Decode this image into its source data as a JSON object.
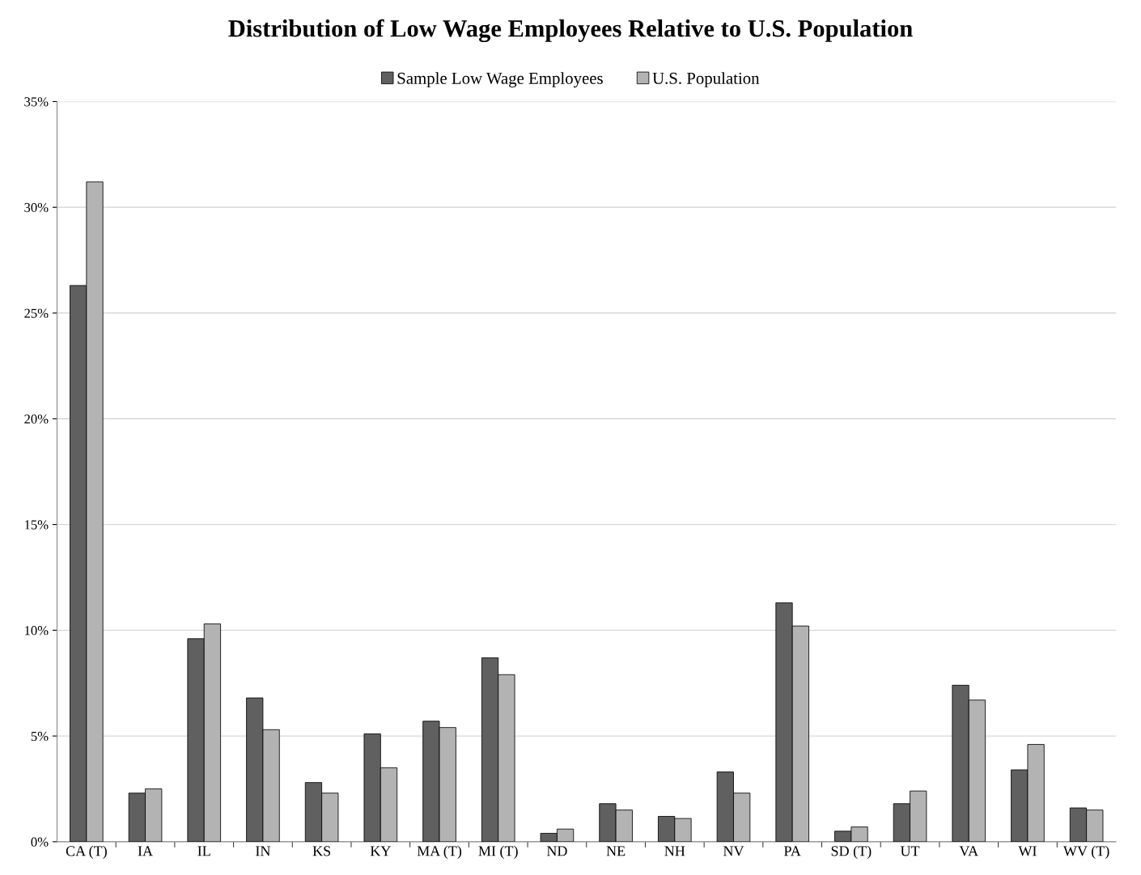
{
  "chart_data": {
    "type": "bar",
    "title": "Distribution of Low Wage Employees Relative to U.S. Population",
    "categories": [
      "CA (T)",
      "IA",
      "IL",
      "IN",
      "KS",
      "KY",
      "MA (T)",
      "MI (T)",
      "ND",
      "NE",
      "NH",
      "NV",
      "PA",
      "SD (T)",
      "UT",
      "VA",
      "WI",
      "WV (T)"
    ],
    "series": [
      {
        "name": "Sample Low Wage Employees",
        "color": "#606060",
        "values": [
          26.3,
          2.3,
          9.6,
          6.8,
          2.8,
          5.1,
          5.7,
          8.7,
          0.4,
          1.8,
          1.2,
          3.3,
          11.3,
          0.5,
          1.8,
          7.4,
          3.4,
          1.6
        ]
      },
      {
        "name": "U.S. Population",
        "color": "#b3b3b3",
        "values": [
          31.2,
          2.5,
          10.3,
          5.3,
          2.3,
          3.5,
          5.4,
          7.9,
          0.6,
          1.5,
          1.1,
          2.3,
          10.2,
          0.7,
          2.4,
          6.7,
          4.6,
          1.5
        ]
      }
    ],
    "ylim": [
      0,
      35
    ],
    "yticks": [
      {
        "value": 0,
        "label": "0%"
      },
      {
        "value": 5,
        "label": "5%"
      },
      {
        "value": 10,
        "label": "10%"
      },
      {
        "value": 15,
        "label": "15%"
      },
      {
        "value": 20,
        "label": "20%"
      },
      {
        "value": 25,
        "label": "25%"
      },
      {
        "value": 30,
        "label": "30%"
      },
      {
        "value": 35,
        "label": "35%"
      }
    ],
    "grid": "y",
    "legend": "top"
  }
}
